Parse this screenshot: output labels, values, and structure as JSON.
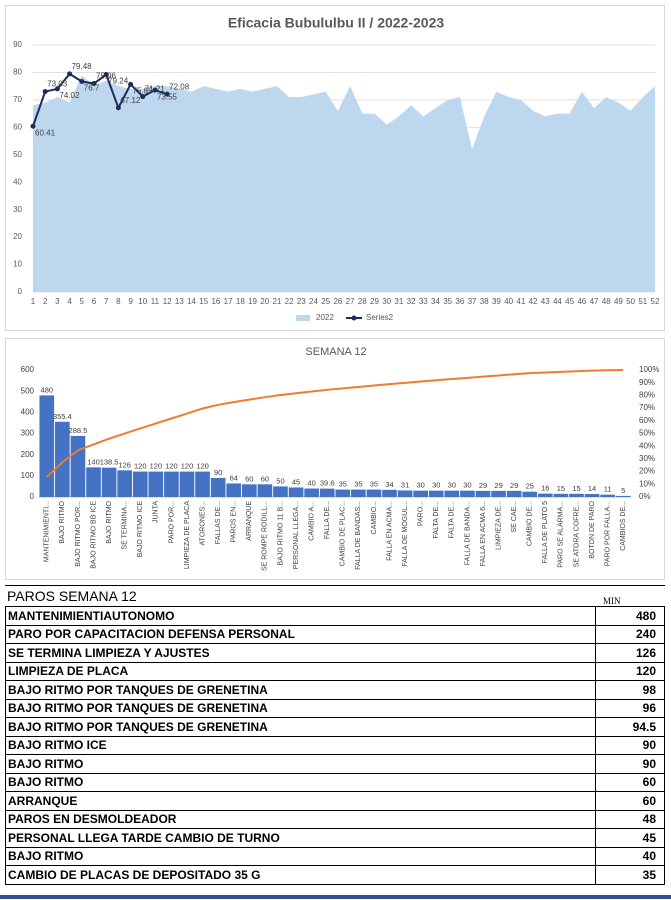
{
  "chart_data": [
    {
      "type": "area",
      "title": "Eficacia Bubululbu II / 2022-2023",
      "categories": [
        "1",
        "2",
        "3",
        "4",
        "5",
        "6",
        "7",
        "8",
        "9",
        "10",
        "11",
        "12",
        "13",
        "14",
        "15",
        "16",
        "17",
        "18",
        "19",
        "20",
        "21",
        "22",
        "23",
        "24",
        "25",
        "26",
        "27",
        "28",
        "29",
        "30",
        "31",
        "32",
        "33",
        "34",
        "35",
        "36",
        "37",
        "38",
        "39",
        "40",
        "41",
        "42",
        "43",
        "44",
        "45",
        "46",
        "47",
        "48",
        "49",
        "50",
        "51",
        "52"
      ],
      "series": [
        {
          "name": "2022",
          "type": "area",
          "color": "#bdd7ee",
          "values": [
            68,
            69,
            71,
            69,
            79,
            75,
            77,
            75,
            74,
            74,
            75,
            75,
            74,
            73,
            75,
            74,
            73,
            74,
            73,
            74,
            75,
            71,
            71,
            72,
            73,
            66,
            75,
            65,
            65,
            61,
            64,
            68,
            64,
            67,
            70,
            71,
            52,
            64,
            73,
            71,
            70,
            66,
            64,
            65,
            65,
            73,
            67,
            71,
            69,
            66,
            71,
            75
          ]
        },
        {
          "name": "Series2",
          "type": "line",
          "color": "#1f2a5c",
          "values": [
            60.41,
            73.03,
            74.02,
            79.48,
            76.7,
            75.96,
            79.24,
            67.12,
            75.65,
            71.21,
            73.55,
            72.08,
            null,
            null,
            null,
            null,
            null,
            null,
            null,
            null,
            null,
            null,
            null,
            null,
            null,
            null,
            null,
            null,
            null,
            null,
            null,
            null,
            null,
            null,
            null,
            null,
            null,
            null,
            null,
            null,
            null,
            null,
            null,
            null,
            null,
            null,
            null,
            null,
            null,
            null,
            null,
            null
          ]
        }
      ],
      "ylim": [
        0,
        90
      ],
      "yticks": [
        0,
        10,
        20,
        30,
        40,
        50,
        60,
        70,
        80,
        90
      ],
      "grid": true,
      "legend": "bottom"
    },
    {
      "type": "bar",
      "title": "SEMANA 12",
      "categories": [
        "MANTENIMIENTI...",
        "BAJO RITMO",
        "BAJO RITMO POR...",
        "BAJO RITMO BB ICE",
        "BAJO RITMO",
        "SE TERMINA...",
        "BAJO RITMO ICE",
        "JUNTA",
        "PARO POR...",
        "LIMPIEZA DE PLACA",
        "ATORONES...",
        "FALLAS DE...",
        "PAROS EN...",
        "ARRANQUE",
        "SE ROMPE RODILL...",
        "BAJO RITMO 11 B...",
        "PERSONAL LLEGA...",
        "CAMBIO A...",
        "FALLA DE...",
        "CAMBIO DE PLAC...",
        "FALLA DE BANDAS...",
        "CAMBIO...",
        "FALLA EN ACMA...",
        "FALLA DE MOGUL...",
        "PARO...",
        "FALTA DE...",
        "FALTA DE...",
        "FALLA DE BANDA...",
        "FALLA EN ACMA 6...",
        "LIMPIEZA DE...",
        "SE CAE...",
        "CAMBIO DE...",
        "FALLA DE PLATO 5",
        "PARO SE ALARMA...",
        "SE ATORA COFRE...",
        "BOTON DE PARO",
        "PARO POR FALLA...",
        "CAMBIOS DE..."
      ],
      "series": [
        {
          "type": "bar",
          "color": "#4472c4",
          "values": [
            480,
            355.4,
            288.5,
            140,
            138.5,
            126,
            120,
            120,
            120,
            120,
            120,
            90,
            64,
            60,
            60,
            50,
            45,
            40,
            39.6,
            35,
            35,
            35,
            34,
            31,
            30,
            30,
            30,
            30,
            29,
            29,
            29,
            25,
            16,
            15,
            15,
            14,
            11,
            5
          ]
        },
        {
          "type": "line",
          "axis": "y2",
          "color": "#ed7d31",
          "values": [
            15.7,
            27.3,
            36.8,
            41.4,
            45.9,
            50.0,
            54.0,
            57.9,
            61.8,
            65.7,
            69.7,
            72.6,
            74.7,
            76.7,
            78.6,
            80.3,
            81.7,
            83.1,
            84.4,
            85.5,
            86.6,
            87.8,
            88.9,
            89.9,
            90.9,
            91.9,
            92.9,
            93.8,
            94.8,
            95.7,
            96.7,
            97.5,
            98.0,
            98.5,
            99.0,
            99.5,
            99.8,
            100
          ]
        }
      ],
      "ylim": [
        0,
        600
      ],
      "yticks": [
        0,
        100,
        200,
        300,
        400,
        500,
        600
      ],
      "y2lim": [
        0,
        100
      ],
      "y2ticks": [
        {
          "value": 0,
          "label": "0%"
        },
        {
          "value": 10,
          "label": "10%"
        },
        {
          "value": 20,
          "label": "20%"
        },
        {
          "value": 30,
          "label": "30%"
        },
        {
          "value": 40,
          "label": "40%"
        },
        {
          "value": 50,
          "label": "50%"
        },
        {
          "value": 60,
          "label": "60%"
        },
        {
          "value": 70,
          "label": "70%"
        },
        {
          "value": 80,
          "label": "80%"
        },
        {
          "value": 90,
          "label": "90%"
        },
        {
          "value": 100,
          "label": "100%"
        }
      ]
    }
  ],
  "table": {
    "title": "PAROS SEMANA 12",
    "unit": "MIN",
    "rows": [
      [
        "MANTENIMIENTIAUTONOMO",
        480
      ],
      [
        "PARO POR CAPACITACION DEFENSA PERSONAL",
        240
      ],
      [
        "SE TERMINA LIMPIEZA Y AJUSTES",
        126
      ],
      [
        "LIMPIEZA DE PLACA",
        120
      ],
      [
        "BAJO RITMO POR TANQUES DE GRENETINA",
        98
      ],
      [
        "BAJO RITMO POR TANQUES DE GRENETINA",
        96
      ],
      [
        "BAJO RITMO POR TANQUES DE GRENETINA",
        94.5
      ],
      [
        "BAJO RITMO ICE",
        90
      ],
      [
        "BAJO RITMO",
        90
      ],
      [
        "BAJO RITMO",
        60
      ],
      [
        "ARRANQUE",
        60
      ],
      [
        "PAROS EN DESMOLDEADOR",
        48
      ],
      [
        "PERSONAL LLEGA TARDE CAMBIO DE TURNO",
        45
      ],
      [
        "BAJO RITMO",
        40
      ],
      [
        "CAMBIO DE PLACAS DE DEPOSITADO 35 G",
        35
      ]
    ]
  }
}
